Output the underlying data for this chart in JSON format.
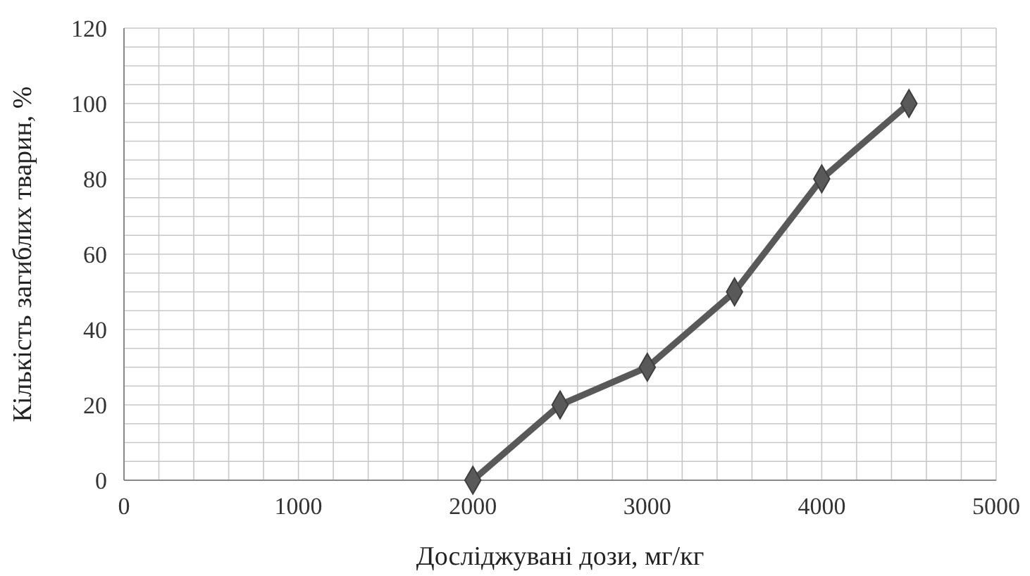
{
  "chart_data": {
    "type": "line",
    "xlabel": "Досліджувані дози, мг/кг",
    "ylabel": "Кількість загиблих тварин, %",
    "x": [
      2000,
      2500,
      3000,
      3500,
      4000,
      4500
    ],
    "series": [
      {
        "color": "#595959",
        "values": [
          0,
          20,
          30,
          50,
          80,
          100
        ]
      }
    ],
    "xlim": [
      0,
      5000
    ],
    "xticks": [
      0,
      {
        "value": 200,
        "label": null
      },
      {
        "value": 400,
        "label": null
      },
      {
        "value": 600,
        "label": null
      },
      {
        "value": 800,
        "label": null
      },
      1000,
      {
        "value": 1200,
        "label": null
      },
      {
        "value": 1400,
        "label": null
      },
      {
        "value": 1600,
        "label": null
      },
      {
        "value": 1800,
        "label": null
      },
      2000,
      {
        "value": 2200,
        "label": null
      },
      {
        "value": 2400,
        "label": null
      },
      {
        "value": 2600,
        "label": null
      },
      {
        "value": 2800,
        "label": null
      },
      3000,
      {
        "value": 3200,
        "label": null
      },
      {
        "value": 3400,
        "label": null
      },
      {
        "value": 3600,
        "label": null
      },
      {
        "value": 3800,
        "label": null
      },
      4000,
      {
        "value": 4200,
        "label": null
      },
      {
        "value": 4400,
        "label": null
      },
      {
        "value": 4600,
        "label": null
      },
      {
        "value": 4800,
        "label": null
      },
      5000
    ],
    "ylim": [
      0,
      120
    ],
    "yticks": [
      0,
      {
        "value": 5,
        "label": null
      },
      {
        "value": 10,
        "label": null
      },
      {
        "value": 15,
        "label": null
      },
      20,
      {
        "value": 25,
        "label": null
      },
      {
        "value": 30,
        "label": null
      },
      {
        "value": 35,
        "label": null
      },
      40,
      {
        "value": 45,
        "label": null
      },
      {
        "value": 50,
        "label": null
      },
      {
        "value": 55,
        "label": null
      },
      60,
      {
        "value": 65,
        "label": null
      },
      {
        "value": 70,
        "label": null
      },
      {
        "value": 75,
        "label": null
      },
      80,
      {
        "value": 85,
        "label": null
      },
      {
        "value": 90,
        "label": null
      },
      {
        "value": 95,
        "label": null
      },
      100,
      {
        "value": 105,
        "label": null
      },
      {
        "value": 110,
        "label": null
      },
      {
        "value": 115,
        "label": null
      },
      120
    ],
    "grid": true,
    "marker": "diamond",
    "line_style": "solid"
  }
}
